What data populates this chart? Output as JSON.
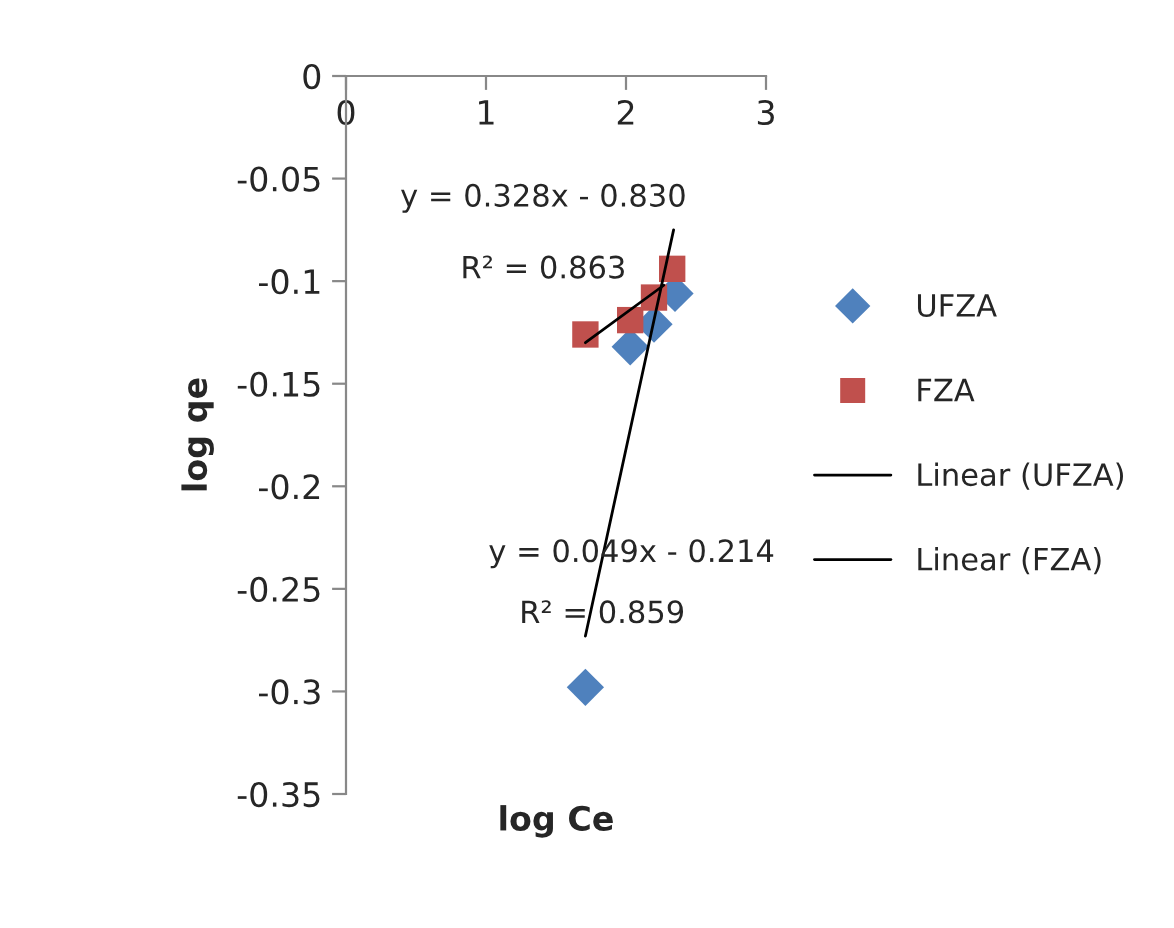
{
  "chart_data": {
    "type": "scatter",
    "xlabel": "log Ce",
    "ylabel": "log qe",
    "xlim": [
      0,
      3
    ],
    "xticks": [
      0,
      1,
      2,
      3
    ],
    "ylim": [
      -0.35,
      0
    ],
    "yticks": [
      0,
      -0.05,
      -0.1,
      -0.15,
      -0.2,
      -0.25,
      -0.3,
      -0.35
    ],
    "grid": false,
    "legend": "right",
    "series": [
      {
        "name": "UFZA",
        "marker": "diamond",
        "color": "#4f81bd",
        "x": [
          1.71,
          2.03,
          2.2,
          2.35
        ],
        "values": [
          -0.298,
          -0.132,
          -0.121,
          -0.106
        ]
      },
      {
        "name": "FZA",
        "marker": "square",
        "color": "#c0504d",
        "x": [
          1.71,
          2.03,
          2.2,
          2.33
        ],
        "values": [
          -0.126,
          -0.119,
          -0.108,
          -0.094
        ]
      },
      {
        "name": "Linear (UFZA)",
        "type": "line",
        "marker": "none",
        "color": "#000000",
        "x": [
          1.71,
          2.34
        ],
        "values": [
          -0.273,
          -0.075
        ]
      },
      {
        "name": "Linear (FZA)",
        "type": "line",
        "marker": "none",
        "color": "#000000",
        "x": [
          1.71,
          2.27
        ],
        "values": [
          -0.13,
          -0.102
        ]
      }
    ],
    "annotations": [
      "y = 0.328x - 0.830",
      "R² = 0.863",
      "y = 0.049x - 0.214",
      "R² = 0.859"
    ]
  }
}
